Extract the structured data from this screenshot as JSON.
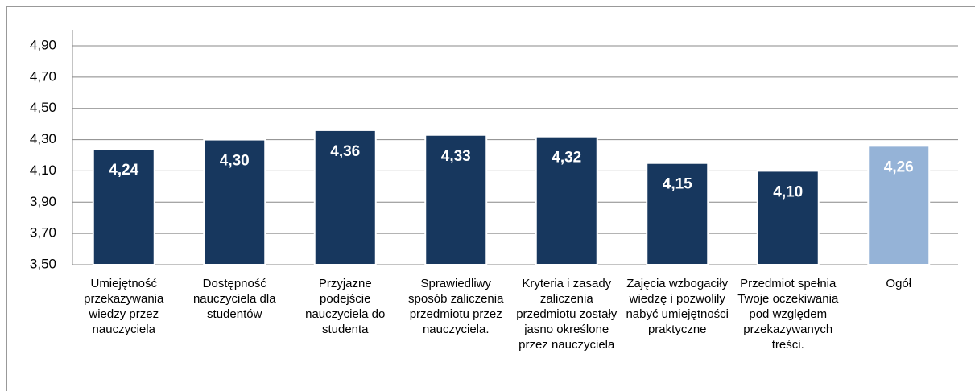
{
  "chart_data": {
    "type": "bar",
    "categories": [
      "Umiejętność przekazywania wiedzy przez nauczyciela",
      "Dostępność nauczyciela dla studentów",
      "Przyjazne podejście nauczyciela do studenta",
      "Sprawiedliwy sposób zaliczenia przedmiotu przez nauczyciela.",
      "Kryteria i zasady zaliczenia przedmiotu zostały jasno określone przez nauczyciela",
      "Zajęcia wzbogaciły wiedzę i pozwoliły nabyć umiejętności praktyczne",
      "Przedmiot spełnia Twoje oczekiwania pod względem przekazywanych treści.",
      "Ogół"
    ],
    "values": [
      4.24,
      4.3,
      4.36,
      4.33,
      4.32,
      4.15,
      4.1,
      4.26
    ],
    "value_labels": [
      "4,24",
      "4,30",
      "4,36",
      "4,33",
      "4,32",
      "4,15",
      "4,10",
      "4,26"
    ],
    "colors": [
      "#17375e",
      "#17375e",
      "#17375e",
      "#17375e",
      "#17375e",
      "#17375e",
      "#17375e",
      "#95b3d7"
    ],
    "ylim": [
      3.5,
      4.9
    ],
    "yticks": [
      {
        "value": 3.5,
        "label": "3,50"
      },
      {
        "value": 3.7,
        "label": "3,70"
      },
      {
        "value": 3.9,
        "label": "3,90"
      },
      {
        "value": 4.1,
        "label": "4,10"
      },
      {
        "value": 4.3,
        "label": "4,30"
      },
      {
        "value": 4.5,
        "label": "4,50"
      },
      {
        "value": 4.7,
        "label": "4,70"
      },
      {
        "value": 4.9,
        "label": "4,90"
      }
    ],
    "grid": true
  }
}
